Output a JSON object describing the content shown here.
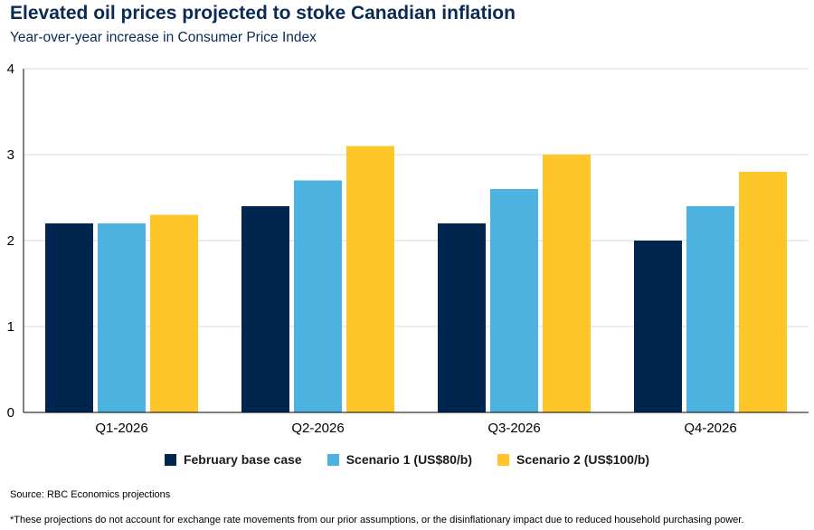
{
  "chart_data": {
    "type": "bar",
    "title": "Elevated oil prices projected to stoke Canadian inflation",
    "subtitle": "Year-over-year increase in Consumer Price Index",
    "categories": [
      "Q1-2026",
      "Q2-2026",
      "Q3-2026",
      "Q4-2026"
    ],
    "series": [
      {
        "name": "February base case",
        "color": "#00264f",
        "values": [
          2.2,
          2.4,
          2.2,
          2.0
        ]
      },
      {
        "name": "Scenario 1 (US$80/b)",
        "color": "#4db2e0",
        "values": [
          2.2,
          2.7,
          2.6,
          2.4
        ]
      },
      {
        "name": "Scenario 2 (US$100/b)",
        "color": "#ffc629",
        "values": [
          2.3,
          3.1,
          3.0,
          2.8
        ]
      }
    ],
    "yticks": [
      "0",
      "1",
      "2",
      "3",
      "4"
    ],
    "ylim": [
      0,
      4
    ],
    "xlabel": "",
    "ylabel": "",
    "grid": true,
    "legend_position": "bottom"
  },
  "notes": {
    "source": "Source: RBC Economics projections",
    "footnote": "*These projections do not account for exchange rate movements from our prior assumptions, or the disinflationary impact due to reduced household purchasing power."
  }
}
